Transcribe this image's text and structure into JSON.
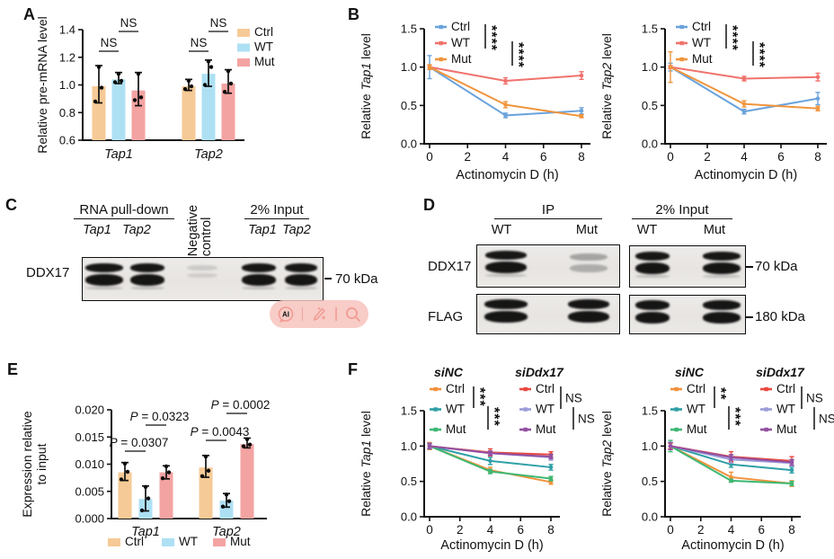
{
  "figure": {
    "background": "#ffffff"
  },
  "panels": {
    "A": {
      "letter": "A"
    },
    "B": {
      "letter": "B"
    },
    "C": {
      "letter": "C",
      "group1": {
        "label": "RNA pull-down",
        "lanes": [
          "Tap1",
          "Tap2"
        ]
      },
      "negative_control_lines": [
        "Negative",
        "control"
      ],
      "group2": {
        "label": "2% Input",
        "lanes": [
          "Tap1",
          "Tap2"
        ]
      },
      "row_label": "DDX17",
      "marker": "70 kDa",
      "lane_signals": [
        "strong",
        "strong",
        "faint",
        "strong",
        "strong"
      ]
    },
    "D": {
      "letter": "D",
      "groups": [
        {
          "label": "IP",
          "lanes": [
            "WT",
            "Mut"
          ]
        },
        {
          "label": "2% Input",
          "lanes": [
            "WT",
            "Mut"
          ]
        }
      ],
      "rows": [
        {
          "label": "DDX17",
          "marker": "70 kDa"
        },
        {
          "label": "FLAG",
          "marker": "180 kDa"
        }
      ],
      "signals": {
        "IP": {
          "DDX17": [
            "strong",
            "weak"
          ],
          "FLAG": [
            "strong",
            "strong"
          ]
        },
        "Input": {
          "DDX17": [
            "strong",
            "strong"
          ],
          "FLAG": [
            "strong",
            "strong"
          ]
        }
      }
    },
    "E": {
      "letter": "E"
    },
    "F": {
      "letter": "F"
    }
  },
  "watermark": {
    "ai_label": "AI",
    "bg": "#f7c3bd",
    "fg": "#f09b92"
  },
  "chart_data": [
    {
      "id": "A",
      "type": "bar",
      "ylabel": "Relative pre-mRNA level",
      "categories": [
        "Tap1",
        "Tap2"
      ],
      "ylim": [
        0.6,
        1.4
      ],
      "yticks": [
        "0.6",
        "0.8",
        "1.0",
        "1.2",
        "1.4"
      ],
      "legend": [
        "Ctrl",
        "WT",
        "Mut"
      ],
      "series": [
        {
          "name": "Ctrl",
          "color": "#f6ca96",
          "values": [
            0.99,
            0.99
          ],
          "err_lo": [
            0.87,
            0.96
          ],
          "err_hi": [
            1.14,
            1.04
          ],
          "dots": [
            [
              0.88,
              0.98,
              1.13
            ],
            [
              0.97,
              0.99,
              1.03
            ]
          ]
        },
        {
          "name": "WT",
          "color": "#aee0f4",
          "values": [
            1.04,
            1.08
          ],
          "err_lo": [
            1.01,
            0.99
          ],
          "err_hi": [
            1.09,
            1.18
          ],
          "dots": [
            [
              1.02,
              1.03,
              1.08
            ],
            [
              1.0,
              1.13,
              1.17
            ]
          ]
        },
        {
          "name": "Mut",
          "color": "#f3a3a2",
          "values": [
            0.96,
            1.01
          ],
          "err_lo": [
            0.85,
            0.94
          ],
          "err_hi": [
            1.09,
            1.11
          ],
          "dots": [
            [
              0.89,
              0.91,
              1.08
            ],
            [
              0.95,
              1.01,
              1.1
            ]
          ]
        }
      ],
      "significance": [
        {
          "group": 0,
          "pair": [
            0,
            1
          ],
          "label": "NS"
        },
        {
          "group": 0,
          "pair": [
            1,
            2
          ],
          "label": "NS"
        },
        {
          "group": 1,
          "pair": [
            0,
            1
          ],
          "label": "NS"
        },
        {
          "group": 1,
          "pair": [
            1,
            2
          ],
          "label": "NS"
        }
      ]
    },
    {
      "id": "B-Tap1",
      "type": "line",
      "ylabel_parts": [
        "Relative ",
        "Tap1",
        " level"
      ],
      "xlabel": "Actinomycin D (h)",
      "x": [
        0,
        4,
        8
      ],
      "xticks": [
        0,
        2,
        4,
        6,
        8
      ],
      "ylim": [
        0,
        1.5
      ],
      "yticks": [
        "0.0",
        "0.5",
        "1.0",
        "1.5"
      ],
      "series": [
        {
          "name": "Ctrl",
          "color": "#6ba3dc",
          "values": [
            1.0,
            0.37,
            0.43
          ],
          "err": [
            0.15,
            0.03,
            0.04
          ]
        },
        {
          "name": "WT",
          "color": "#f0726c",
          "values": [
            1.0,
            0.82,
            0.89
          ],
          "err": [
            0.03,
            0.04,
            0.05
          ]
        },
        {
          "name": "Mut",
          "color": "#f0953e",
          "values": [
            1.0,
            0.51,
            0.36
          ],
          "err": [
            0.03,
            0.04,
            0.02
          ]
        }
      ],
      "significance": [
        {
          "pair": [
            "Ctrl",
            "WT"
          ],
          "label": "****"
        },
        {
          "pair": [
            "WT",
            "Mut"
          ],
          "label": "****"
        }
      ]
    },
    {
      "id": "B-Tap2",
      "type": "line",
      "ylabel_parts": [
        "Relative ",
        "Tap2",
        " level"
      ],
      "xlabel": "Actinomycin D (h)",
      "x": [
        0,
        4,
        8
      ],
      "xticks": [
        0,
        2,
        4,
        6,
        8
      ],
      "ylim": [
        0,
        1.5
      ],
      "yticks": [
        "0.0",
        "0.5",
        "1.0",
        "1.5"
      ],
      "series": [
        {
          "name": "Ctrl",
          "color": "#6ba3dc",
          "values": [
            1.0,
            0.42,
            0.59
          ],
          "err": [
            0.05,
            0.03,
            0.08
          ]
        },
        {
          "name": "WT",
          "color": "#f0726c",
          "values": [
            1.0,
            0.85,
            0.87
          ],
          "err": [
            0.02,
            0.03,
            0.05
          ]
        },
        {
          "name": "Mut",
          "color": "#f0953e",
          "values": [
            1.0,
            0.52,
            0.46
          ],
          "err": [
            0.2,
            0.04,
            0.03
          ]
        }
      ],
      "significance": [
        {
          "pair": [
            "Ctrl",
            "WT"
          ],
          "label": "****"
        },
        {
          "pair": [
            "WT",
            "Mut"
          ],
          "label": "****"
        }
      ]
    },
    {
      "id": "E",
      "type": "bar",
      "ylabel_lines": [
        "Expression relative",
        "to input"
      ],
      "categories": [
        "Tap1",
        "Tap2"
      ],
      "ylim": [
        0,
        0.02
      ],
      "yticks": [
        "0.000",
        "0.005",
        "0.010",
        "0.015",
        "0.020"
      ],
      "legend": [
        "Ctrl",
        "WT",
        "Mut"
      ],
      "series": [
        {
          "name": "Ctrl",
          "color": "#f6ca96",
          "values": [
            0.0085,
            0.0094
          ],
          "err_lo": [
            0.007,
            0.0076
          ],
          "err_hi": [
            0.0103,
            0.0116
          ],
          "dots": [
            [
              0.0072,
              0.0086,
              0.0101
            ],
            [
              0.0078,
              0.0088,
              0.0114
            ]
          ]
        },
        {
          "name": "WT",
          "color": "#aee0f4",
          "values": [
            0.0036,
            0.0033
          ],
          "err_lo": [
            0.0014,
            0.0021
          ],
          "err_hi": [
            0.006,
            0.0046
          ],
          "dots": [
            [
              0.0015,
              0.0037,
              0.0058
            ],
            [
              0.0022,
              0.0032,
              0.0044
            ]
          ]
        },
        {
          "name": "Mut",
          "color": "#f3a3a2",
          "values": [
            0.0085,
            0.0137
          ],
          "err_lo": [
            0.0073,
            0.013
          ],
          "err_hi": [
            0.0097,
            0.0148
          ],
          "dots": [
            [
              0.0074,
              0.0085,
              0.0096
            ],
            [
              0.0133,
              0.0136,
              0.0146
            ]
          ]
        }
      ],
      "significance": [
        {
          "group": 0,
          "pair": [
            0,
            1
          ],
          "label": "P = 0.0307"
        },
        {
          "group": 0,
          "pair": [
            1,
            2
          ],
          "label": "P = 0.0323"
        },
        {
          "group": 1,
          "pair": [
            0,
            1
          ],
          "label": "P = 0.0043"
        },
        {
          "group": 1,
          "pair": [
            1,
            2
          ],
          "label": "P = 0.0002"
        }
      ]
    },
    {
      "id": "F-Tap1",
      "type": "line",
      "ylabel_parts": [
        "Relative ",
        "Tap1",
        " level"
      ],
      "xlabel": "Actinomycin D (h)",
      "x": [
        0,
        4,
        8
      ],
      "xticks": [
        0,
        2,
        4,
        6,
        8
      ],
      "ylim": [
        0,
        1.5
      ],
      "yticks": [
        "0.0",
        "0.5",
        "1.0",
        "1.5"
      ],
      "groups": [
        {
          "name": "siNC",
          "sig": [
            {
              "pair": [
                "Ctrl",
                "WT"
              ],
              "label": "***"
            },
            {
              "pair": [
                "WT",
                "Mut"
              ],
              "label": "***"
            }
          ]
        },
        {
          "name": "siDdx17",
          "sig": [
            {
              "pair": [
                "Ctrl",
                "WT"
              ],
              "label": "NS"
            },
            {
              "pair": [
                "WT",
                "Mut"
              ],
              "label": "NS"
            }
          ]
        }
      ],
      "series": [
        {
          "group": "siNC",
          "name": "Ctrl",
          "color": "#f0913b",
          "values": [
            1.0,
            0.66,
            0.49
          ],
          "err": [
            0.05,
            0.04,
            0.03
          ]
        },
        {
          "group": "siNC",
          "name": "WT",
          "color": "#2e9fa6",
          "values": [
            1.0,
            0.79,
            0.7
          ],
          "err": [
            0.04,
            0.05,
            0.04
          ]
        },
        {
          "group": "siNC",
          "name": "Mut",
          "color": "#3eb873",
          "values": [
            1.0,
            0.64,
            0.54
          ],
          "err": [
            0.03,
            0.03,
            0.03
          ]
        },
        {
          "group": "siDdx17",
          "name": "Ctrl",
          "color": "#e8483f",
          "values": [
            1.0,
            0.91,
            0.88
          ],
          "err": [
            0.03,
            0.05,
            0.04
          ]
        },
        {
          "group": "siDdx17",
          "name": "WT",
          "color": "#9b9bd8",
          "values": [
            1.0,
            0.9,
            0.84
          ],
          "err": [
            0.03,
            0.03,
            0.04
          ]
        },
        {
          "group": "siDdx17",
          "name": "Mut",
          "color": "#9350a1",
          "values": [
            1.0,
            0.9,
            0.85
          ],
          "err": [
            0.04,
            0.03,
            0.03
          ]
        }
      ]
    },
    {
      "id": "F-Tap2",
      "type": "line",
      "ylabel_parts": [
        "Relative ",
        "Tap2",
        " level"
      ],
      "xlabel": "Actinomycin D (h)",
      "x": [
        0,
        4,
        8
      ],
      "xticks": [
        0,
        2,
        4,
        6,
        8
      ],
      "ylim": [
        0,
        1.5
      ],
      "yticks": [
        "0.0",
        "0.5",
        "1.0",
        "1.5"
      ],
      "groups": [
        {
          "name": "siNC",
          "sig": [
            {
              "pair": [
                "Ctrl",
                "WT"
              ],
              "label": "**"
            },
            {
              "pair": [
                "WT",
                "Mut"
              ],
              "label": "***"
            }
          ]
        },
        {
          "name": "siDdx17",
          "sig": [
            {
              "pair": [
                "Ctrl",
                "WT"
              ],
              "label": "NS"
            },
            {
              "pair": [
                "WT",
                "Mut"
              ],
              "label": "NS"
            }
          ]
        }
      ],
      "series": [
        {
          "group": "siNC",
          "name": "Ctrl",
          "color": "#f0913b",
          "values": [
            1.0,
            0.56,
            0.47
          ],
          "err": [
            0.04,
            0.07,
            0.04
          ]
        },
        {
          "group": "siNC",
          "name": "WT",
          "color": "#2e9fa6",
          "values": [
            1.0,
            0.74,
            0.66
          ],
          "err": [
            0.05,
            0.04,
            0.04
          ]
        },
        {
          "group": "siNC",
          "name": "Mut",
          "color": "#3eb873",
          "values": [
            1.0,
            0.51,
            0.47
          ],
          "err": [
            0.08,
            0.02,
            0.03
          ]
        },
        {
          "group": "siDdx17",
          "name": "Ctrl",
          "color": "#e8483f",
          "values": [
            1.0,
            0.85,
            0.79
          ],
          "err": [
            0.04,
            0.07,
            0.06
          ]
        },
        {
          "group": "siDdx17",
          "name": "WT",
          "color": "#9b9bd8",
          "values": [
            1.0,
            0.81,
            0.76
          ],
          "err": [
            0.05,
            0.05,
            0.04
          ]
        },
        {
          "group": "siDdx17",
          "name": "Mut",
          "color": "#9350a1",
          "values": [
            1.0,
            0.84,
            0.77
          ],
          "err": [
            0.05,
            0.04,
            0.04
          ]
        }
      ]
    }
  ]
}
